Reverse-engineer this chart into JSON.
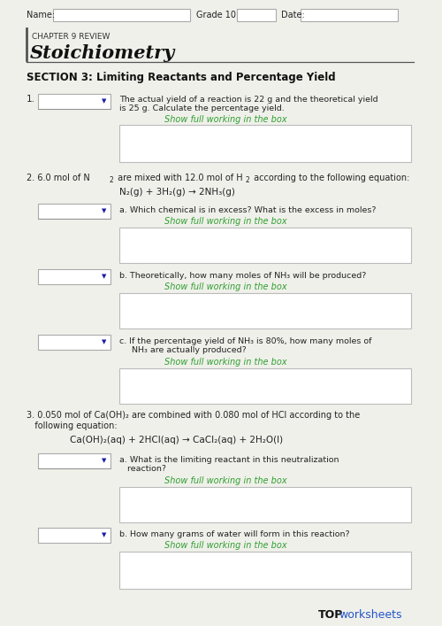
{
  "bg_color": "#f0f0eb",
  "title_chapter": "CHAPTER 9 REVIEW",
  "title_main": "Stoichiometry",
  "section_title": "SECTION 3: Limiting Reactants and Percentage Yield",
  "name_label": "Name:",
  "grade_label": "Grade 10",
  "date_label": "Date:",
  "show_working": "Show full working in the box",
  "show_working_color": "#2da02d",
  "q1_num": "1.",
  "q1_text1": "The actual yield of a reaction is 22 g and the theoretical yield",
  "q1_text2": "is 25 g. Calculate the percentage yield.",
  "q2_intro1": "2. 6.0 mol of N",
  "q2_intro2": " are mixed with 12.0 mol of H",
  "q2_intro3": " according to the following equation:",
  "q2_eq": "N₂(g) + 3H₂(g) → 2NH₃(g)",
  "q2a_text": "a. Which chemical is in excess? What is the excess in moles?",
  "q2b_text": "b. Theoretically, how many moles of NH₃ will be produced?",
  "q2c_text1": "c. If the percentage yield of NH₃ is 80%, how many moles of",
  "q2c_text2": "NH₃ are actually produced?",
  "q3_intro1": "3. 0.050 mol of Ca(OH)₂ are combined with 0.080 mol of HCl according to the",
  "q3_intro2": "   following equation:",
  "q3_eq": "Ca(OH)₂(aq) + 2HCl(aq) → CaCl₂(aq) + 2H₂O(l)",
  "q3a_text1": "a. What is the limiting reactant in this neutralization",
  "q3a_text2": "   reaction?",
  "q3b_text": "b. How many grams of water will form in this reaction?",
  "top_text": "TOP",
  "worksheets_text": "worksheets",
  "top_color": "#111111",
  "worksheets_color": "#2255cc"
}
